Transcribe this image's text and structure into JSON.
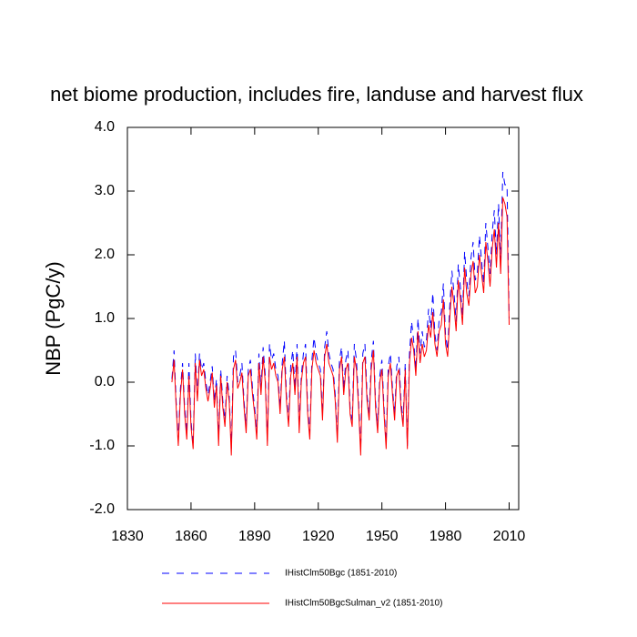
{
  "chart_data": {
    "type": "line",
    "title": "net biome production, includes fire, landuse and harvest flux",
    "y_label": "NBP  (PgC/y)",
    "x": [
      1851,
      1852,
      1853,
      1854,
      1855,
      1856,
      1857,
      1858,
      1859,
      1860,
      1861,
      1862,
      1863,
      1864,
      1865,
      1866,
      1867,
      1868,
      1869,
      1870,
      1871,
      1872,
      1873,
      1874,
      1875,
      1876,
      1877,
      1878,
      1879,
      1880,
      1881,
      1882,
      1883,
      1884,
      1885,
      1886,
      1887,
      1888,
      1889,
      1890,
      1891,
      1892,
      1893,
      1894,
      1895,
      1896,
      1897,
      1898,
      1899,
      1900,
      1901,
      1902,
      1903,
      1904,
      1905,
      1906,
      1907,
      1908,
      1909,
      1910,
      1911,
      1912,
      1913,
      1914,
      1915,
      1916,
      1917,
      1918,
      1919,
      1920,
      1921,
      1922,
      1923,
      1924,
      1925,
      1926,
      1927,
      1928,
      1929,
      1930,
      1931,
      1932,
      1933,
      1934,
      1935,
      1936,
      1937,
      1938,
      1939,
      1940,
      1941,
      1942,
      1943,
      1944,
      1945,
      1946,
      1947,
      1948,
      1949,
      1950,
      1951,
      1952,
      1953,
      1954,
      1955,
      1956,
      1957,
      1958,
      1959,
      1960,
      1961,
      1962,
      1963,
      1964,
      1965,
      1966,
      1967,
      1968,
      1969,
      1970,
      1971,
      1972,
      1973,
      1974,
      1975,
      1976,
      1977,
      1978,
      1979,
      1980,
      1981,
      1982,
      1983,
      1984,
      1985,
      1986,
      1987,
      1988,
      1989,
      1990,
      1991,
      1992,
      1993,
      1994,
      1995,
      1996,
      1997,
      1998,
      1999,
      2000,
      2001,
      2002,
      2003,
      2004,
      2005,
      2006,
      2007,
      2008,
      2009,
      2010
    ],
    "series": [
      {
        "name": "IHistClm50Bgc (1851-2010)",
        "color": "#0000ff",
        "dash": true,
        "values": [
          0.05,
          0.5,
          -0.3,
          -0.9,
          -0.1,
          0.3,
          -0.4,
          -0.8,
          0.3,
          -0.6,
          -1.0,
          0.45,
          -0.2,
          0.45,
          0.2,
          0.3,
          0.0,
          -0.2,
          0.0,
          0.25,
          -0.3,
          0.05,
          -0.9,
          0.2,
          -0.3,
          -0.6,
          0.1,
          -0.2,
          -1.05,
          0.4,
          0.5,
          0.0,
          0.1,
          0.3,
          -0.3,
          -0.7,
          0.2,
          0.35,
          -0.1,
          -0.4,
          -0.8,
          0.45,
          -0.1,
          0.55,
          0.1,
          -0.95,
          0.6,
          0.35,
          0.45,
          0.2,
          0.1,
          -0.4,
          0.3,
          0.65,
          -0.2,
          -0.6,
          0.25,
          0.5,
          -0.1,
          0.6,
          -0.7,
          0.1,
          0.45,
          0.6,
          -0.4,
          -0.8,
          0.35,
          0.7,
          0.45,
          0.3,
          0.2,
          -0.5,
          0.55,
          0.8,
          0.45,
          0.3,
          0.2,
          -0.2,
          -0.85,
          0.35,
          0.55,
          -0.1,
          0.35,
          0.5,
          -0.4,
          -0.6,
          0.6,
          0.35,
          -0.3,
          -1.05,
          0.45,
          0.6,
          -0.2,
          -0.5,
          0.35,
          0.65,
          -0.3,
          -0.7,
          0.1,
          0.35,
          -0.4,
          -0.95,
          0.25,
          0.45,
          -0.1,
          -0.5,
          0.25,
          0.4,
          -0.3,
          -0.6,
          0.3,
          -1.0,
          0.45,
          0.95,
          0.65,
          0.2,
          1.0,
          0.45,
          0.8,
          0.55,
          0.65,
          1.15,
          0.85,
          1.4,
          0.75,
          0.5,
          1.0,
          1.1,
          1.55,
          0.75,
          0.5,
          1.2,
          1.75,
          1.4,
          0.95,
          1.85,
          1.5,
          1.05,
          2.05,
          1.6,
          1.35,
          1.95,
          2.2,
          1.6,
          1.7,
          2.3,
          1.9,
          1.55,
          2.5,
          2.1,
          1.7,
          2.35,
          2.7,
          2.0,
          2.8,
          1.9,
          3.3,
          3.1,
          3.1,
          1.0
        ]
      },
      {
        "name": "IHistClm50BgcSulman_v2 (1851-2010)",
        "color": "#ff0000",
        "dash": false,
        "values": [
          0.0,
          0.35,
          -0.4,
          -1.0,
          -0.2,
          0.2,
          -0.5,
          -0.9,
          0.1,
          -0.7,
          -1.05,
          0.3,
          -0.3,
          0.35,
          0.1,
          0.2,
          -0.1,
          -0.3,
          -0.1,
          0.15,
          -0.4,
          -0.05,
          -1.0,
          0.1,
          -0.4,
          -0.7,
          0.0,
          -0.3,
          -1.15,
          0.2,
          0.35,
          -0.1,
          0.0,
          0.15,
          -0.4,
          -0.8,
          0.1,
          0.2,
          -0.2,
          -0.5,
          -0.9,
          0.3,
          -0.2,
          0.4,
          0.0,
          -1.0,
          0.4,
          0.2,
          0.3,
          0.1,
          0.0,
          -0.5,
          0.2,
          0.4,
          -0.3,
          -0.7,
          0.1,
          0.3,
          -0.2,
          0.4,
          -0.8,
          0.0,
          0.3,
          0.4,
          -0.5,
          -0.9,
          0.2,
          0.5,
          0.3,
          0.2,
          0.1,
          -0.6,
          0.4,
          0.6,
          0.3,
          0.2,
          0.1,
          -0.3,
          -0.95,
          0.2,
          0.4,
          -0.2,
          0.2,
          0.3,
          -0.5,
          -0.7,
          0.4,
          0.2,
          -0.4,
          -1.15,
          0.3,
          0.4,
          -0.3,
          -0.6,
          0.2,
          0.5,
          -0.4,
          -0.8,
          0.0,
          0.2,
          -0.5,
          -1.05,
          0.1,
          0.3,
          -0.2,
          -0.6,
          0.1,
          0.2,
          -0.4,
          -0.7,
          0.2,
          -1.05,
          0.3,
          0.7,
          0.5,
          0.1,
          0.8,
          0.3,
          0.6,
          0.4,
          0.5,
          0.9,
          0.7,
          1.1,
          0.6,
          0.4,
          0.8,
          0.9,
          1.3,
          0.6,
          0.4,
          1.0,
          1.5,
          1.2,
          0.8,
          1.6,
          1.3,
          0.9,
          1.8,
          1.4,
          1.2,
          1.7,
          1.9,
          1.4,
          1.5,
          2.0,
          1.7,
          1.4,
          2.2,
          1.9,
          1.5,
          2.1,
          2.4,
          1.8,
          2.5,
          1.7,
          2.9,
          2.8,
          2.6,
          0.9
        ]
      }
    ],
    "xlim": [
      1830,
      2014.5
    ],
    "xticks": [
      1830,
      1860,
      1890,
      1920,
      1950,
      1980,
      2010
    ],
    "ylim": [
      -2,
      4
    ],
    "yticks": [
      {
        "value": -2,
        "label": "-2.0"
      },
      {
        "value": -1,
        "label": "-1.0"
      },
      {
        "value": 0,
        "label": "0.0"
      },
      {
        "value": 1,
        "label": "1.0"
      },
      {
        "value": 2,
        "label": "2.0"
      },
      {
        "value": 3,
        "label": "3.0"
      },
      {
        "value": 4,
        "label": "4.0"
      }
    ],
    "grid": false
  }
}
